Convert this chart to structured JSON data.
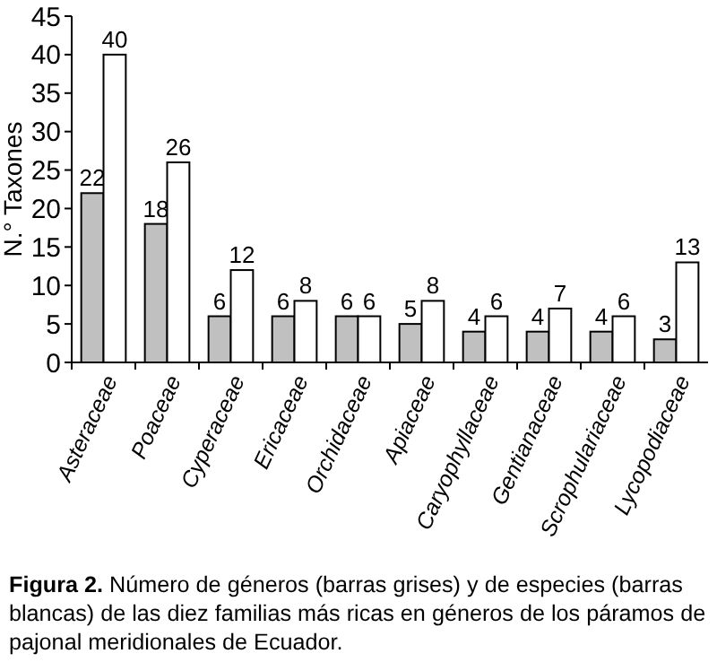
{
  "chart_data": {
    "type": "bar",
    "ylabel": "N.° Taxones",
    "categories": [
      "Asteraceae",
      "Poaceae",
      "Cyperaceae",
      "Ericaceae",
      "Orchidaceae",
      "Apiaceae",
      "Caryophyllaceae",
      "Gentianaceae",
      "Scrophulariaceae",
      "Lycopodiaceae"
    ],
    "series": [
      {
        "color": "#c0c0c0",
        "values": [
          22,
          18,
          6,
          6,
          6,
          5,
          4,
          4,
          4,
          3
        ]
      },
      {
        "color": "#ffffff",
        "values": [
          40,
          26,
          12,
          8,
          6,
          8,
          6,
          7,
          6,
          13
        ]
      }
    ],
    "ylim": [
      0,
      45
    ],
    "yticks": [
      0,
      5,
      10,
      15,
      20,
      25,
      30,
      35,
      40,
      45
    ],
    "data_labels": true,
    "annotations": [
      "Figura 2. Número de géneros (barras grises) y de especies (barras blancas) de las diez familias más ricas en géneros de los páramos de pajonal meridionales de Ecuador."
    ]
  }
}
